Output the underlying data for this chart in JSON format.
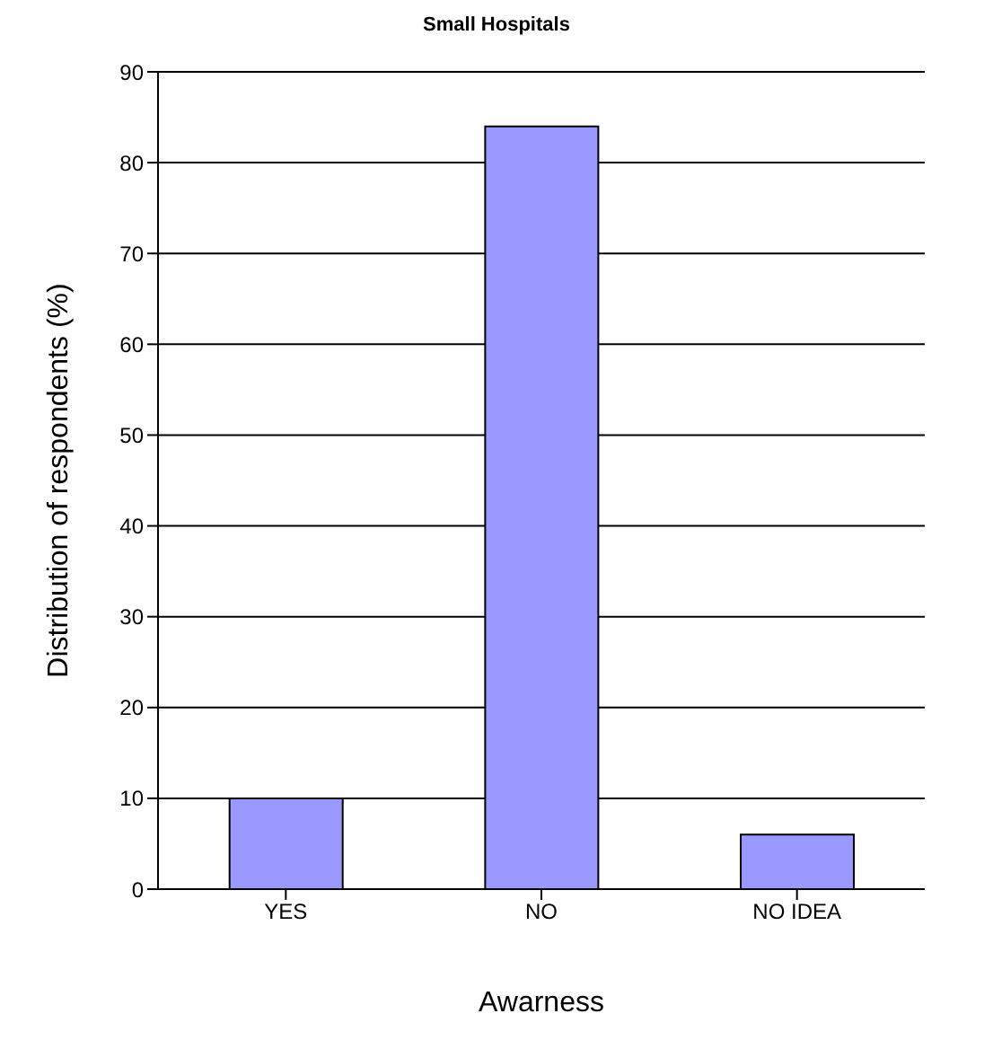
{
  "chart_data": {
    "type": "bar",
    "title": "Small Hospitals",
    "xlabel": "Awarness",
    "ylabel": "Distribution of respondents (%)",
    "categories": [
      "YES",
      "NO",
      "NO IDEA"
    ],
    "values": [
      10,
      84,
      6
    ],
    "color": "#9999ff",
    "ylim": [
      0,
      90
    ],
    "yticks": [
      0,
      10,
      20,
      30,
      40,
      50,
      60,
      70,
      80,
      90
    ],
    "grid": "y"
  }
}
